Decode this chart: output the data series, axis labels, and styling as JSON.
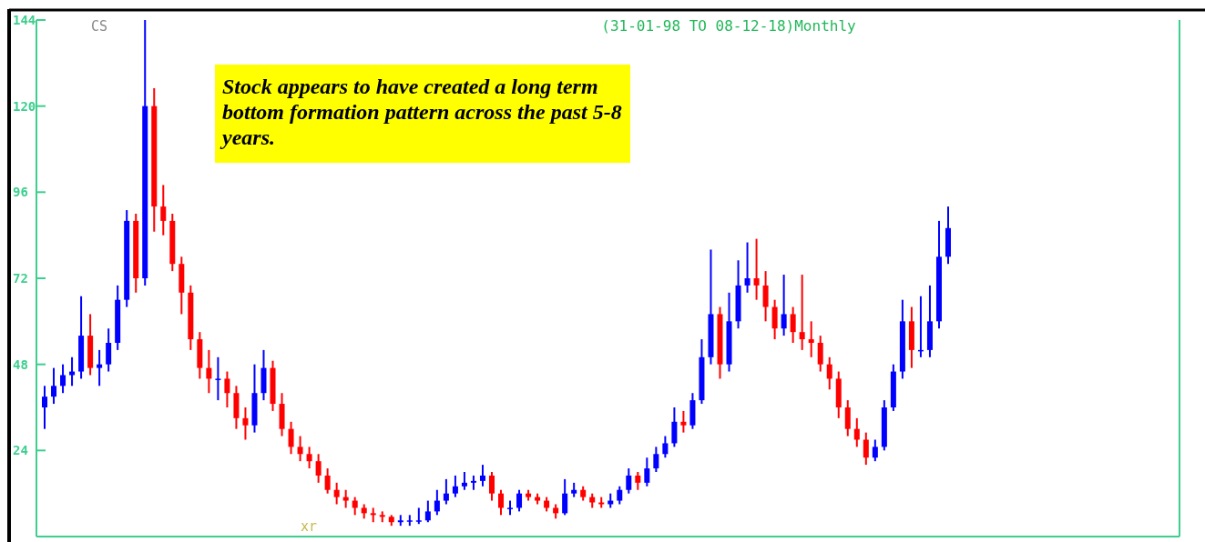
{
  "chart_data": {
    "type": "candlestick",
    "title": "(31-01-98 TO 08-12-18)Monthly",
    "annotations": [
      "Stock appears to have created a long term bottom formation pattern across the past 5-8 years.",
      "CS",
      "xr"
    ],
    "colors": [
      "#0000ff",
      "#0000ff",
      "#0000ff",
      "#0000ff",
      "#0000ff",
      "#ff0000",
      "#0000ff",
      "#0000ff",
      "#0000ff",
      "#0000ff",
      "#ff0000",
      "#0000ff",
      "#ff0000",
      "#ff0000",
      "#ff0000",
      "#ff0000",
      "#ff0000",
      "#ff0000",
      "#ff0000",
      "#0000ff",
      "#ff0000",
      "#ff0000",
      "#ff0000",
      "#0000ff",
      "#0000ff",
      "#ff0000",
      "#ff0000",
      "#ff0000",
      "#ff0000",
      "#ff0000",
      "#ff0000",
      "#ff0000",
      "#ff0000",
      "#ff0000",
      "#ff0000",
      "#ff0000",
      "#ff0000",
      "#ff0000",
      "#ff0000",
      "#0000ff",
      "#0000ff",
      "#0000ff",
      "#0000ff",
      "#0000ff",
      "#0000ff",
      "#0000ff",
      "#0000ff",
      "#0000ff",
      "#0000ff",
      "#ff0000",
      "#ff0000",
      "#0000ff",
      "#0000ff",
      "#ff0000",
      "#ff0000",
      "#ff0000",
      "#ff0000",
      "#0000ff",
      "#0000ff",
      "#ff0000",
      "#ff0000",
      "#ff0000",
      "#0000ff",
      "#0000ff",
      "#0000ff",
      "#ff0000",
      "#0000ff",
      "#0000ff",
      "#0000ff",
      "#0000ff",
      "#ff0000",
      "#0000ff",
      "#0000ff",
      "#0000ff",
      "#ff0000",
      "#0000ff",
      "#0000ff",
      "#0000ff",
      "#ff0000",
      "#ff0000",
      "#ff0000",
      "#0000ff",
      "#ff0000",
      "#ff0000",
      "#ff0000",
      "#ff0000",
      "#ff0000",
      "#ff0000",
      "#ff0000",
      "#ff0000",
      "#ff0000",
      "#0000ff",
      "#0000ff",
      "#0000ff",
      "#0000ff",
      "#ff0000",
      "#0000ff",
      "#0000ff",
      "#0000ff",
      "#0000ff"
    ],
    "ylim": [
      0,
      144
    ],
    "yticks": [
      24,
      48,
      72,
      96,
      120,
      144
    ],
    "grid": false,
    "categories": [
      null,
      null,
      null,
      null,
      null,
      null,
      null,
      null,
      null,
      null,
      null,
      null,
      null,
      null,
      null,
      null,
      null,
      null,
      null,
      null,
      null,
      null,
      null,
      null,
      null,
      null,
      null,
      null,
      null,
      null,
      null,
      null,
      null,
      null,
      null,
      null,
      null,
      null,
      null,
      null,
      null,
      null,
      null,
      null,
      null,
      null,
      null,
      null,
      null,
      null,
      null,
      null,
      null,
      null,
      null,
      null,
      null,
      null,
      null,
      null,
      null,
      null,
      null,
      null,
      null,
      null,
      null,
      null,
      null,
      null,
      null,
      null,
      null,
      null,
      null,
      null,
      null,
      null,
      null,
      null,
      null,
      null,
      null,
      null,
      null,
      null,
      null,
      null,
      null,
      null,
      null,
      null,
      null,
      null,
      null,
      null,
      null,
      null,
      null,
      null
    ],
    "ohlc": [
      [
        36,
        42,
        30,
        39
      ],
      [
        39,
        47,
        37,
        42
      ],
      [
        42,
        48,
        40,
        45
      ],
      [
        45,
        50,
        42,
        46
      ],
      [
        46,
        67,
        44,
        56
      ],
      [
        56,
        62,
        45,
        47
      ],
      [
        47,
        52,
        42,
        48
      ],
      [
        48,
        58,
        46,
        54
      ],
      [
        54,
        70,
        52,
        66
      ],
      [
        66,
        91,
        64,
        88
      ],
      [
        88,
        90,
        68,
        72
      ],
      [
        72,
        144,
        70,
        120
      ],
      [
        120,
        125,
        85,
        92
      ],
      [
        92,
        98,
        84,
        88
      ],
      [
        88,
        90,
        74,
        76
      ],
      [
        76,
        78,
        62,
        68
      ],
      [
        68,
        70,
        52,
        55
      ],
      [
        55,
        57,
        44,
        47
      ],
      [
        47,
        52,
        40,
        44
      ],
      [
        44,
        50,
        38,
        44
      ],
      [
        44,
        46,
        36,
        40
      ],
      [
        40,
        42,
        30,
        33
      ],
      [
        33,
        36,
        27,
        31
      ],
      [
        31,
        48,
        29,
        40
      ],
      [
        40,
        52,
        38,
        47
      ],
      [
        47,
        49,
        35,
        37
      ],
      [
        37,
        40,
        28,
        30
      ],
      [
        30,
        32,
        23,
        25
      ],
      [
        25,
        28,
        21,
        23
      ],
      [
        23,
        25,
        19,
        21
      ],
      [
        21,
        23,
        15,
        17
      ],
      [
        17,
        19,
        12,
        13
      ],
      [
        13,
        15,
        9,
        11
      ],
      [
        11,
        13,
        8,
        10
      ],
      [
        10,
        11,
        6,
        8
      ],
      [
        8,
        9,
        5,
        6.5
      ],
      [
        6.5,
        8,
        4,
        6
      ],
      [
        6,
        7,
        4,
        5.5
      ],
      [
        5.5,
        6,
        3,
        4
      ],
      [
        4,
        6,
        3,
        4.5
      ],
      [
        4.5,
        6,
        3,
        4.5
      ],
      [
        4.5,
        8,
        3.5,
        4.5
      ],
      [
        4.5,
        10,
        4,
        7
      ],
      [
        7,
        13,
        6,
        10
      ],
      [
        10,
        16,
        9,
        12
      ],
      [
        12,
        17,
        11,
        14
      ],
      [
        14,
        18,
        13,
        15
      ],
      [
        15,
        17,
        13,
        15.5
      ],
      [
        15.5,
        20,
        14,
        17
      ],
      [
        17,
        18,
        10,
        12
      ],
      [
        12,
        13,
        6,
        8
      ],
      [
        8,
        10,
        6,
        8
      ],
      [
        8,
        13,
        7,
        12
      ],
      [
        12,
        13,
        10,
        11
      ],
      [
        11,
        12,
        9,
        10
      ],
      [
        10,
        11,
        7,
        8
      ],
      [
        8,
        9,
        5,
        6.5
      ],
      [
        6.5,
        16,
        6,
        12
      ],
      [
        12,
        15,
        11,
        13
      ],
      [
        13,
        14,
        10,
        11
      ],
      [
        11,
        12,
        8,
        9.5
      ],
      [
        9.5,
        11,
        8,
        9
      ],
      [
        9,
        12,
        8,
        10
      ],
      [
        10,
        14,
        9,
        13
      ],
      [
        13,
        19,
        12,
        17
      ],
      [
        17,
        18,
        13,
        15
      ],
      [
        15,
        22,
        14,
        19
      ],
      [
        19,
        25,
        18,
        23
      ],
      [
        23,
        28,
        22,
        26
      ],
      [
        26,
        36,
        25,
        32
      ],
      [
        32,
        35,
        29,
        31
      ],
      [
        31,
        40,
        30,
        38
      ],
      [
        38,
        55,
        37,
        50
      ],
      [
        50,
        80,
        48,
        62
      ],
      [
        62,
        64,
        44,
        48
      ],
      [
        48,
        68,
        46,
        60
      ],
      [
        60,
        77,
        58,
        70
      ],
      [
        70,
        82,
        68,
        72
      ],
      [
        72,
        83,
        66,
        70
      ],
      [
        70,
        74,
        60,
        64
      ],
      [
        64,
        66,
        55,
        58
      ],
      [
        58,
        73,
        56,
        62
      ],
      [
        62,
        64,
        54,
        57
      ],
      [
        57,
        73,
        52,
        55
      ],
      [
        55,
        60,
        50,
        54
      ],
      [
        54,
        56,
        46,
        48
      ],
      [
        48,
        50,
        41,
        44
      ],
      [
        44,
        46,
        33,
        36
      ],
      [
        36,
        38,
        28,
        30
      ],
      [
        30,
        33,
        25,
        27
      ],
      [
        27,
        29,
        20,
        22
      ],
      [
        22,
        27,
        21,
        25
      ],
      [
        25,
        38,
        24,
        36
      ],
      [
        36,
        48,
        35,
        46
      ],
      [
        46,
        66,
        44,
        60
      ],
      [
        60,
        64,
        47,
        52
      ],
      [
        52,
        67,
        50,
        52
      ],
      [
        52,
        70,
        50,
        60
      ],
      [
        60,
        88,
        58,
        78
      ],
      [
        78,
        92,
        76,
        86
      ]
    ]
  }
}
